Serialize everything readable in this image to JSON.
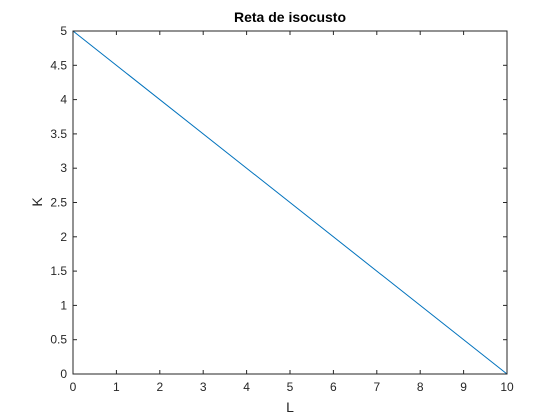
{
  "chart_data": {
    "type": "line",
    "title": "Reta de isocusto",
    "xlabel": "L",
    "ylabel": "K",
    "xlim": [
      0,
      10
    ],
    "ylim": [
      0,
      5
    ],
    "xticks": [
      0,
      1,
      2,
      3,
      4,
      5,
      6,
      7,
      8,
      9,
      10
    ],
    "xtick_labels": [
      "0",
      "1",
      "2",
      "3",
      "4",
      "5",
      "6",
      "7",
      "8",
      "9",
      "10"
    ],
    "yticks": [
      0,
      0.5,
      1,
      1.5,
      2,
      2.5,
      3,
      3.5,
      4,
      4.5,
      5
    ],
    "ytick_labels": [
      "0",
      "0.5",
      "1",
      "1.5",
      "2",
      "2.5",
      "3",
      "3.5",
      "4",
      "4.5",
      "5"
    ],
    "grid": false,
    "legend": "none",
    "series": [
      {
        "x": [
          0,
          10
        ],
        "y": [
          5,
          0
        ],
        "color": "#0072BD"
      }
    ]
  }
}
